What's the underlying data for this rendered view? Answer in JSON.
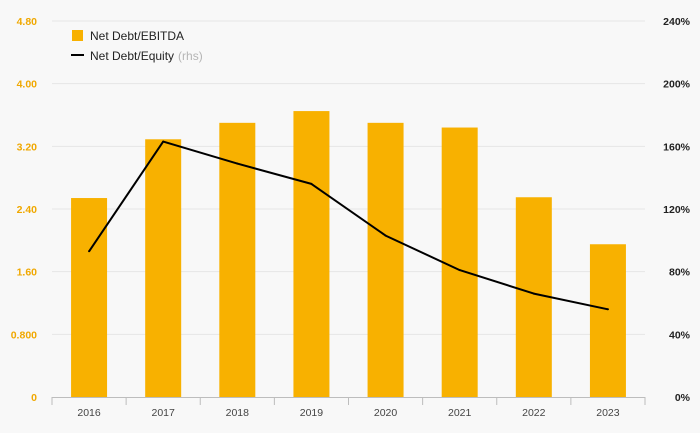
{
  "chart_data": {
    "type": "bar",
    "categories": [
      "2016",
      "2017",
      "2018",
      "2019",
      "2020",
      "2021",
      "2022",
      "2023"
    ],
    "series": [
      {
        "name": "Net Debt/EBITDA",
        "type": "bar",
        "axis": "left",
        "color": "#f8b100",
        "values": [
          2.54,
          3.29,
          3.5,
          3.65,
          3.5,
          3.44,
          2.55,
          1.95
        ]
      },
      {
        "name": "Net Debt/Equity",
        "name_suffix": "(rhs)",
        "type": "line",
        "axis": "right",
        "color": "#000000",
        "values": [
          0.93,
          1.63,
          1.49,
          1.36,
          1.03,
          0.81,
          0.66,
          0.56
        ]
      }
    ],
    "left_axis": {
      "ylim": [
        0,
        4.8
      ],
      "ticks": [
        0,
        0.8,
        1.6,
        2.4,
        3.2,
        4.0,
        4.8
      ],
      "tick_labels": [
        "0",
        "0.800",
        "1.60",
        "2.40",
        "3.20",
        "4.00",
        "4.80"
      ],
      "color": "#f0a800"
    },
    "right_axis": {
      "ylim": [
        0,
        2.4
      ],
      "ticks": [
        0,
        0.4,
        0.8,
        1.2,
        1.6,
        2.0,
        2.4
      ],
      "tick_labels": [
        "0%",
        "40%",
        "80%",
        "120%",
        "160%",
        "200%",
        "240%"
      ],
      "color": "#222222"
    },
    "grid": true,
    "legend_position": "top-left"
  }
}
